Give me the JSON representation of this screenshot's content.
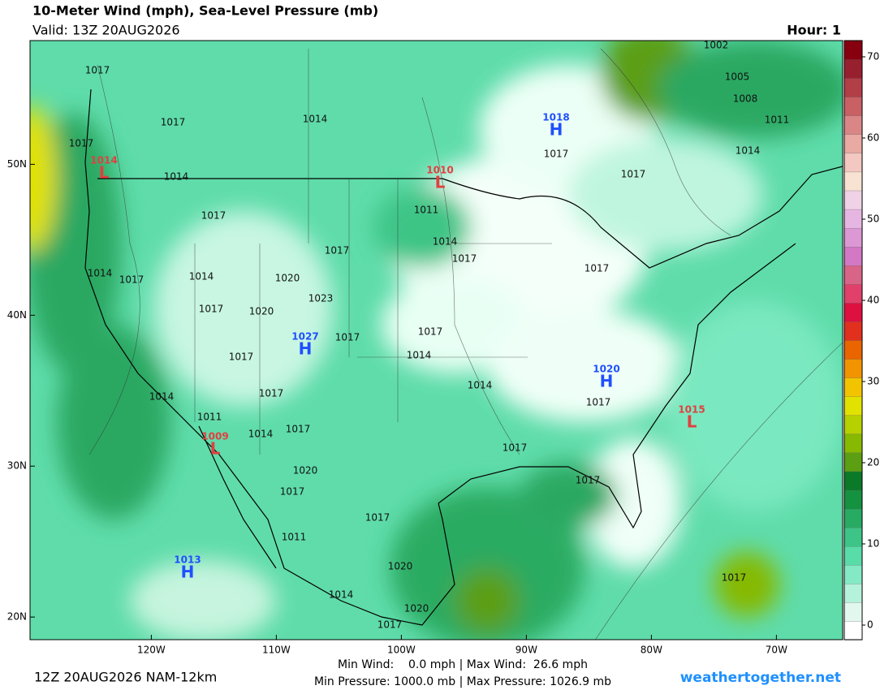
{
  "header": {
    "title": "10-Meter Wind (mph), Sea-Level Pressure (mb)",
    "valid": "Valid: 13Z 20AUG2026",
    "hour": "Hour: 1"
  },
  "map": {
    "lon_ticks": [
      {
        "value": -120,
        "label": "120W"
      },
      {
        "value": -110,
        "label": "110W"
      },
      {
        "value": -100,
        "label": "100W"
      },
      {
        "value": -90,
        "label": "90W"
      },
      {
        "value": -80,
        "label": "80W"
      },
      {
        "value": -70,
        "label": "70W"
      }
    ],
    "lat_ticks": [
      {
        "value": 50,
        "label": "50N"
      },
      {
        "value": 40,
        "label": "40N"
      },
      {
        "value": 30,
        "label": "30N"
      },
      {
        "value": 20,
        "label": "20N"
      }
    ],
    "xlim": [
      -129.7,
      -64.7
    ],
    "ylim": [
      18.5,
      58.2
    ],
    "pressure_centers": [
      {
        "letter": "H",
        "value": "1018"
      },
      {
        "letter": "L",
        "value": "1010"
      },
      {
        "letter": "L",
        "value": "1014"
      },
      {
        "letter": "H",
        "value": "1027"
      },
      {
        "letter": "H",
        "value": "1020"
      },
      {
        "letter": "L",
        "value": "1015"
      },
      {
        "letter": "L",
        "value": "1009"
      },
      {
        "letter": "H",
        "value": "1013"
      }
    ],
    "isobar_labels": [
      "1017",
      "1017",
      "1017",
      "1014",
      "1014",
      "1017",
      "1014",
      "1017",
      "1014",
      "1020",
      "1017",
      "1023",
      "1017",
      "1020",
      "1017",
      "1017",
      "1014",
      "1017",
      "1011",
      "1014",
      "1017",
      "1017",
      "1017",
      "1014",
      "1017",
      "1014",
      "1017",
      "1017",
      "1017",
      "1014",
      "1011",
      "1014",
      "1017",
      "1017",
      "1020",
      "1017",
      "1017",
      "1011",
      "1020",
      "1014",
      "1020",
      "1017",
      "1002",
      "1005",
      "1008",
      "1011",
      "1017"
    ]
  },
  "colorbar": {
    "lim": [
      -1.8,
      72
    ],
    "ticks": [
      0,
      10,
      20,
      30,
      40,
      50,
      60,
      70
    ],
    "colors": [
      "#ffffff",
      "#e2f8ef",
      "#b4f2dc",
      "#84eac6",
      "#58dca8",
      "#3cc586",
      "#27ab62",
      "#14923f",
      "#0a7a28",
      "#5c9f12",
      "#86b900",
      "#b6d000",
      "#e2e200",
      "#f2c400",
      "#f29400",
      "#ea6400",
      "#e2301e",
      "#de1040",
      "#e0406a",
      "#d86488",
      "#d278c4",
      "#dc98d4",
      "#e6b6e2",
      "#f0d2e6",
      "#f8e2d2",
      "#f2c8c0",
      "#e8aaa2",
      "#da8686",
      "#c86064",
      "#b23e48",
      "#98202e",
      "#860010"
    ]
  },
  "footer": {
    "run": "12Z 20AUG2026 NAM-12km",
    "wind": "Min Wind:    0.0 mph | Max Wind:  26.6 mph",
    "pressure": "Min Pressure: 1000.0 mb | Max Pressure: 1026.9 mb",
    "site": "weathertogether.net"
  }
}
